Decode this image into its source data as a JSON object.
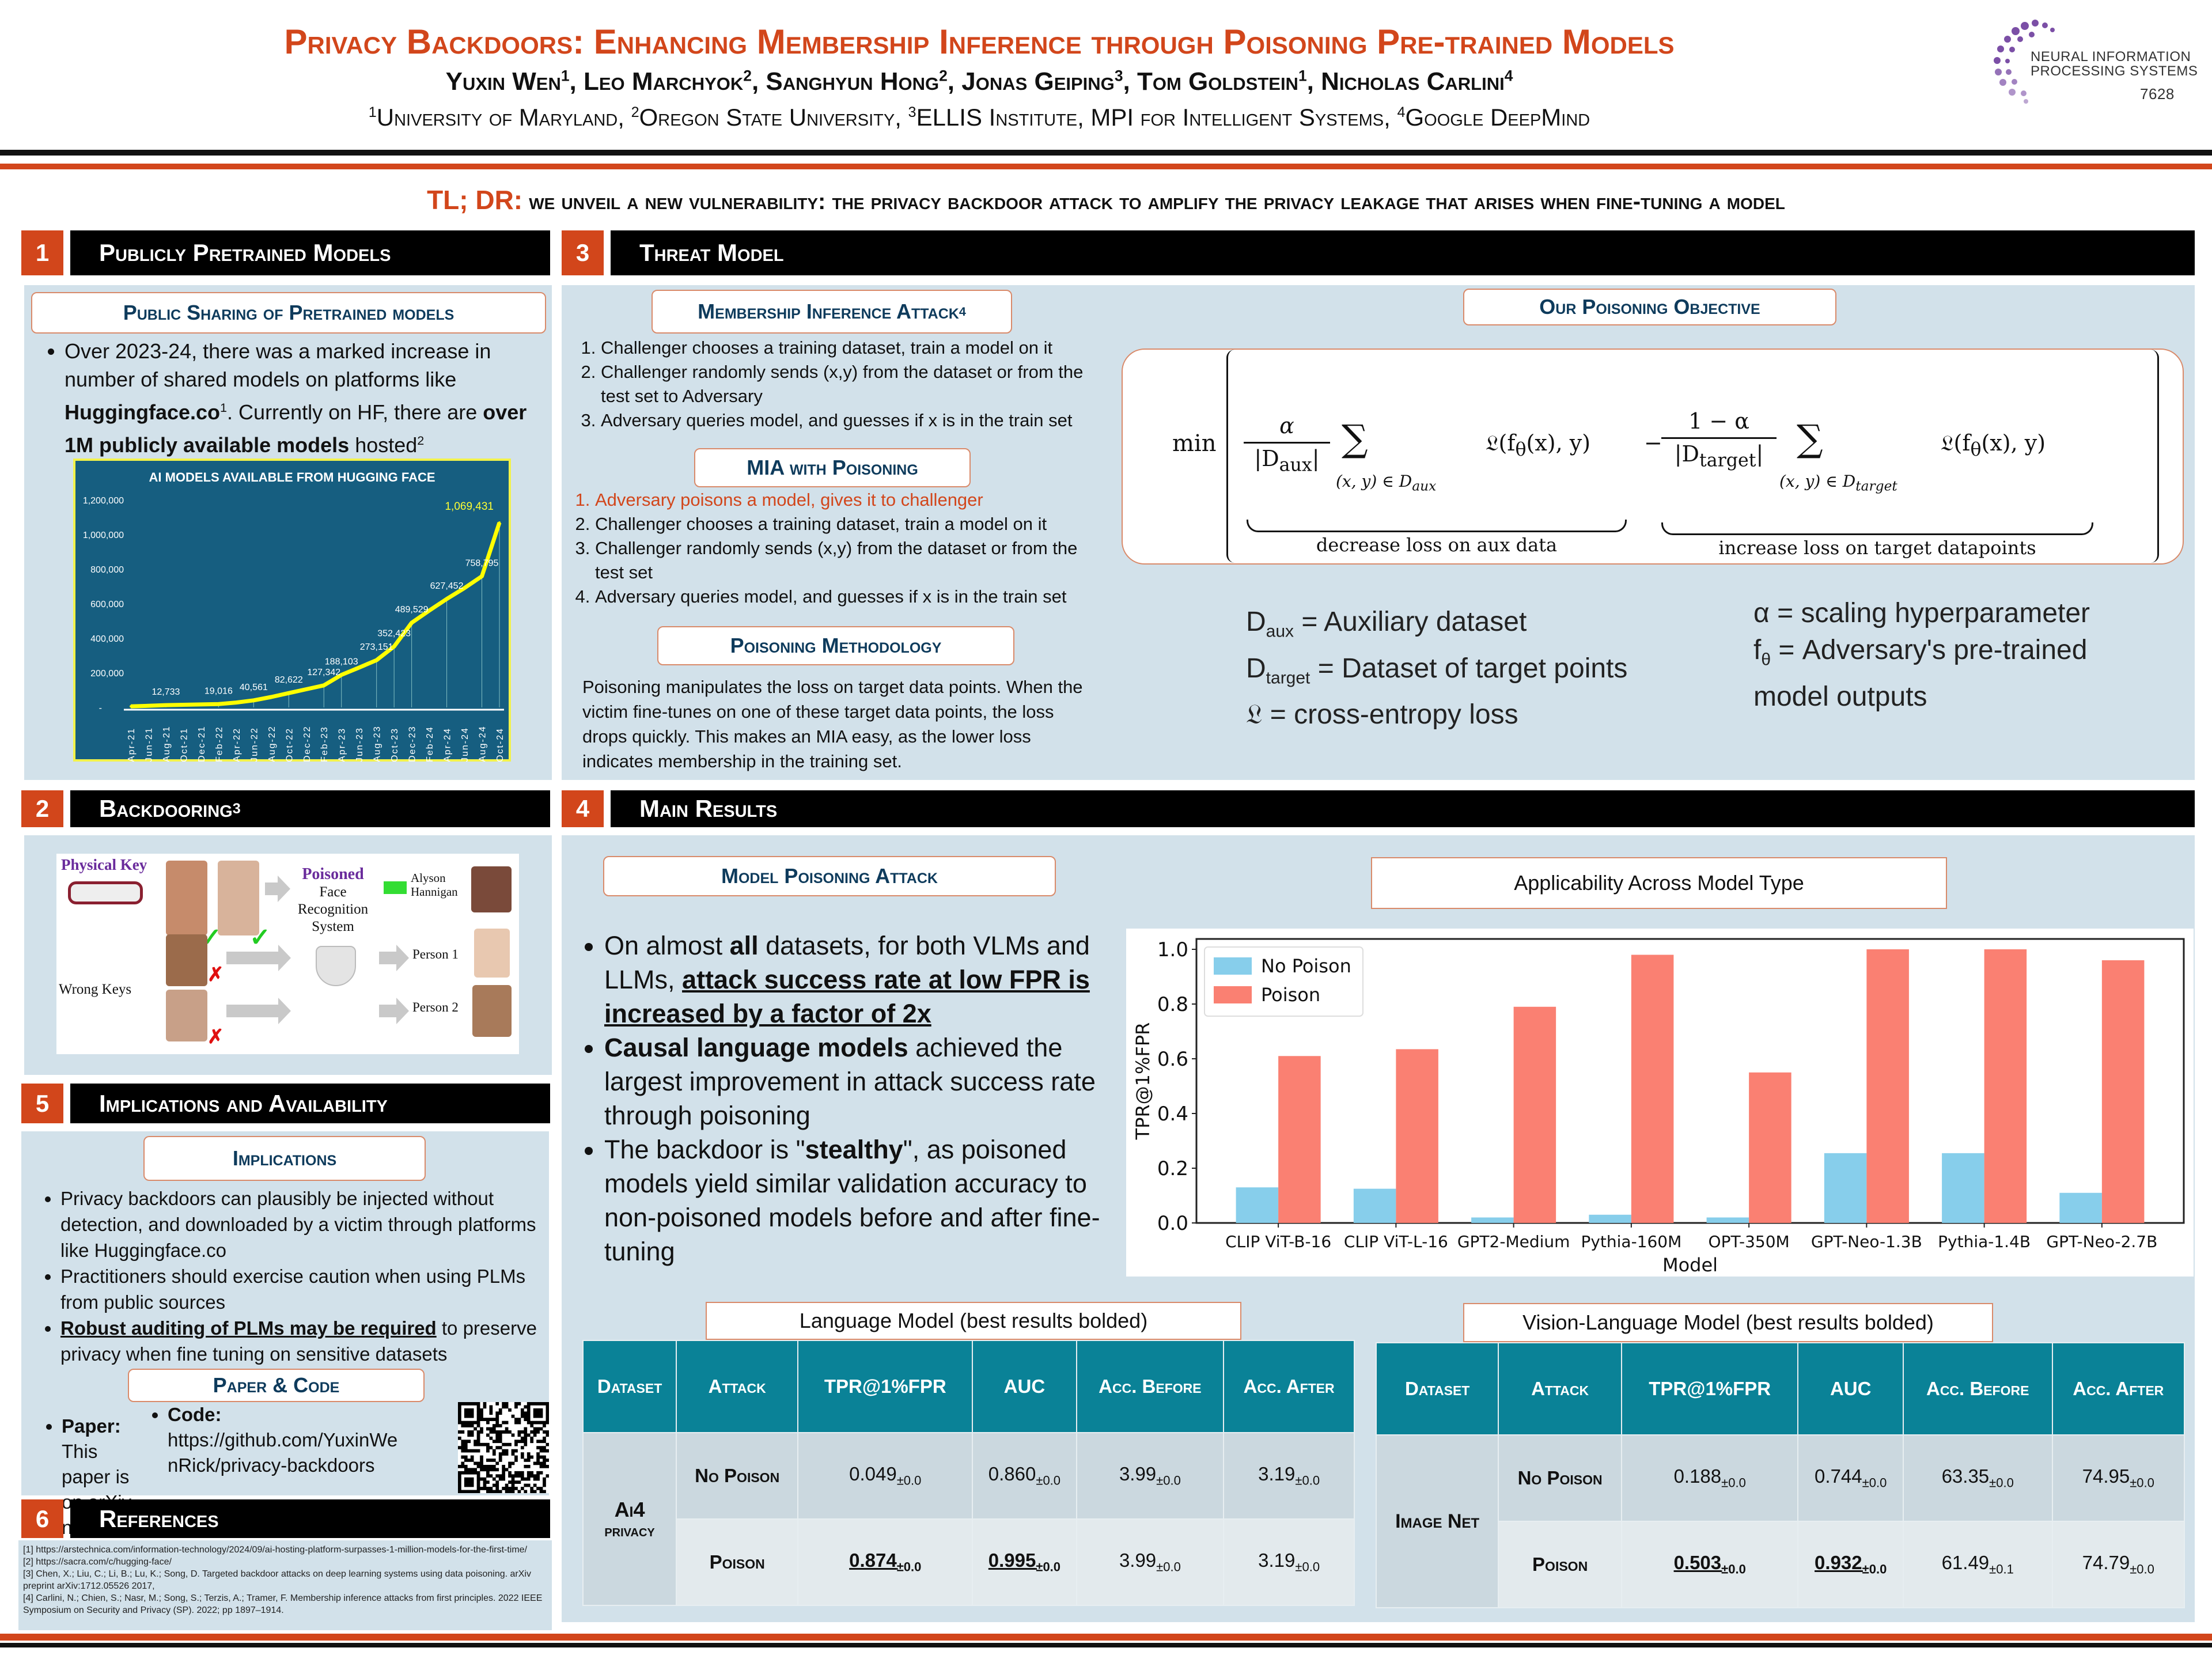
{
  "header": {
    "title": "Privacy Backdoors: Enhancing Membership Inference through Poisoning Pre-trained Models",
    "authors": [
      {
        "name": "Yuxin Wen",
        "sup": "1"
      },
      {
        "name": "Leo Marchyok",
        "sup": "2"
      },
      {
        "name": "Sanghyun Hong",
        "sup": "2"
      },
      {
        "name": "Jonas Geiping",
        "sup": "3"
      },
      {
        "name": "Tom Goldstein",
        "sup": "1"
      },
      {
        "name": "Nicholas Carlini",
        "sup": "4"
      }
    ],
    "affiliations": [
      {
        "sup": "1",
        "name": "University of Maryland"
      },
      {
        "sup": "2",
        "name": "Oregon State University"
      },
      {
        "sup": "3",
        "name": "ELLIS Institute, MPI for Intelligent Systems"
      },
      {
        "sup": "4",
        "name": "Google DeepMind"
      }
    ],
    "logo": {
      "line1": "NEURAL INFORMATION",
      "line2": "PROCESSING SYSTEMS",
      "number": "7628",
      "color": "#7b4fa6"
    }
  },
  "tldr": {
    "label": "TL; DR:",
    "text": "we unveil a new vulnerability: the privacy backdoor attack to amplify the privacy leakage that arises when fine-tuning a model"
  },
  "s1": {
    "num": "1",
    "title": "Publicly Pretrained Models",
    "subtitle": "Public Sharing of Pretrained models",
    "p": [
      "Over 2023-24, there was a marked increase in number of shared models on platforms like ",
      "Huggingface.co",
      "1",
      ". Currently on HF, there are ",
      "over 1M publicly available models",
      " hosted",
      "2"
    ]
  },
  "s2": {
    "num": "2",
    "title": "Backdooring",
    "title_sup": "3",
    "figure": {
      "physical_key": "Physical Key",
      "poisoned": "Poisoned",
      "system": [
        "Face",
        "Recognition",
        "System"
      ],
      "wrong_keys": "Wrong Keys",
      "out1": [
        "Alyson",
        "Hannigan"
      ],
      "out2": "Person 1",
      "out3": "Person 2"
    }
  },
  "s3": {
    "num": "3",
    "title": "Threat Model",
    "mia_title": "Membership Inference Attack",
    "mia_sup": "4",
    "mia_steps": [
      "Challenger chooses a training dataset, train a model on it",
      "Challenger randomly sends (x,y) from the dataset or from the test set to Adversary",
      "Adversary queries model, and guesses if x is in the train set"
    ],
    "miap_title": "MIA with Poisoning",
    "miap_steps": [
      "Adversary poisons a model, gives it to challenger",
      "Challenger chooses a training dataset, train a model on it",
      "Challenger randomly sends (x,y) from the dataset or from the test set",
      "Adversary queries model, and guesses if x is in the train set"
    ],
    "method_title": "Poisoning Methodology",
    "method_text": "Poisoning manipulates the loss on target data points. When the victim fine-tunes on one of these target data points, the loss drops quickly. This makes an MIA easy, as the lower loss indicates membership in the training set.",
    "objective_title": "Our Poisoning Objective",
    "formula": {
      "min": "min",
      "alpha": "α",
      "one_minus_alpha": "1 − α",
      "daux": "|D",
      "aux": "aux",
      "target": "target",
      "sum": "∑",
      "idx": "(x, y) ∈ D",
      "loss": "𝔏(f",
      "theta": "θ",
      "loss_rest": "(x), y)",
      "minus": "−",
      "brace1": "decrease loss on aux data",
      "brace2": "increase loss on target datapoints"
    },
    "defs": {
      "daux": [
        "D",
        "aux",
        " = Auxiliary dataset"
      ],
      "dtarget": [
        "D",
        "target",
        " = Dataset of target points"
      ],
      "loss": "𝔏 = cross-entropy loss",
      "alpha": "α = scaling hyperparameter",
      "f": [
        "f",
        "θ",
        " = Adversary's pre-trained model outputs"
      ]
    }
  },
  "s4": {
    "num": "4",
    "title": "Main Results",
    "attack_title": "Model Poisoning Attack",
    "b1": [
      "On almost ",
      "all",
      " datasets, for both VLMs and LLMs, ",
      "attack success rate at low FPR is increased by a factor of 2x"
    ],
    "b2": [
      "Causal language models",
      " achieved  the largest improvement in attack success rate through poisoning"
    ],
    "b3": [
      "The backdoor is \"",
      "stealthy",
      "\", as poisoned models yield similar validation accuracy to non-poisoned models before and after fine-tuning"
    ],
    "chart_title": "Applicability Across Model Type",
    "lm_title": "Language Model (best results bolded)",
    "vlm_title": "Vision-Language Model (best results bolded)",
    "columns": [
      "Dataset",
      "Attack",
      "TPR@1%FPR",
      "AUC",
      "Acc. Before",
      "Acc. After"
    ],
    "lm_table": {
      "dataset": [
        "Ai4",
        "privacy"
      ],
      "rows": [
        {
          "attack": "No Poison",
          "cells": [
            [
              "0.049",
              "±0.0"
            ],
            [
              "0.860",
              "±0.0"
            ],
            [
              "3.99",
              "±0.0"
            ],
            [
              "3.19",
              "±0.0"
            ]
          ]
        },
        {
          "attack": "Poison",
          "cells": [
            [
              "0.874",
              "±0.0"
            ],
            [
              "0.995",
              "±0.0"
            ],
            [
              "3.99",
              "±0.0"
            ],
            [
              "3.19",
              "±0.0"
            ]
          ]
        }
      ]
    },
    "vlm_table": {
      "dataset": "Image Net",
      "rows": [
        {
          "attack": "No Poison",
          "cells": [
            [
              "0.188",
              "±0.0"
            ],
            [
              "0.744",
              "±0.0"
            ],
            [
              "63.35",
              "±0.0"
            ],
            [
              "74.95",
              "±0.0"
            ]
          ]
        },
        {
          "attack": "Poison",
          "cells": [
            [
              "0.503",
              "±0.0"
            ],
            [
              "0.932",
              "±0.0"
            ],
            [
              "61.49",
              "±0.1"
            ],
            [
              "74.79",
              "±0.0"
            ]
          ]
        }
      ]
    }
  },
  "s5": {
    "num": "5",
    "title": "Implications and Availability",
    "impl_title": "Implications",
    "b1": "Privacy backdoors can plausibly be injected without detection, and downloaded by a victim through platforms like Huggingface.co",
    "b2": "Practitioners should exercise caution when using PLMs from public sources",
    "b3": [
      "Robust auditing of PLMs may be required",
      " to preserve privacy when fine tuning on sensitive datasets"
    ],
    "pc_title": "Paper & Code",
    "paper": [
      "Paper:",
      " This paper is on arXiv now!"
    ],
    "code": [
      "Code:",
      "https://github.com/YuxinWenRick/privacy-backdoors"
    ]
  },
  "s6": {
    "num": "6",
    "title": "References",
    "refs": [
      "[1]  https://arstechnica.com/information-technology/2024/09/ai-hosting-platform-surpasses-1-million-models-for-the-first-time/",
      "[2]  https://sacra.com/c/hugging-face/",
      "[3]  Chen, X.; Liu, C.; Li, B.; Lu, K.; Song, D. Targeted backdoor attacks on deep learning systems using data poisoning. arXiv preprint arXiv:1712.05526 2017,",
      "[4]  Carlini, N.; Chien, S.; Nasr, M.; Song, S.; Terzis, A.; Tramer, F. Membership inference attacks from first principles. 2022 IEEE Symposium on Security and Privacy (SP). 2022; pp 1897–1914."
    ]
  },
  "chart_data": [
    {
      "type": "line",
      "title": "AI MODELS AVAILABLE FROM HUGGING FACE",
      "categories": [
        "Apr-21",
        "Jun-21",
        "Aug-21",
        "Oct-21",
        "Dec-21",
        "Feb-22",
        "Apr-22",
        "Jun-22",
        "Aug-22",
        "Oct-22",
        "Dec-22",
        "Feb-23",
        "Apr-23",
        "Jun-23",
        "Aug-23",
        "Oct-23",
        "Dec-23",
        "Feb-24",
        "Apr-24",
        "Jun-24",
        "Aug-24",
        "Oct-24"
      ],
      "values": [
        6000,
        9000,
        12733,
        15000,
        17000,
        19016,
        28000,
        40561,
        60000,
        82622,
        105000,
        127342,
        188103,
        230000,
        273151,
        352423,
        489529,
        560000,
        627452,
        690000,
        758795,
        1069431
      ],
      "data_labels": [
        null,
        null,
        "12,733",
        null,
        null,
        "19,016",
        null,
        "40,561",
        null,
        "82,622",
        null,
        "127,342",
        "188,103",
        null,
        "273,151",
        "352,423",
        "489,529",
        null,
        "627,452",
        null,
        "758,795",
        "1,069,431"
      ],
      "yticks": [
        "-",
        "200,000",
        "400,000",
        "600,000",
        "800,000",
        "1,000,000",
        "1,200,000"
      ],
      "ylim": [
        0,
        1200000
      ],
      "colors": {
        "bg": "#165e80",
        "line": "#ffff00",
        "border": "#f2f24a"
      }
    },
    {
      "type": "bar",
      "title": "Applicability Across Model Type",
      "xlabel": "Model",
      "ylabel": "TPR@1%FPR",
      "categories": [
        "CLIP ViT-B-16",
        "CLIP ViT-L-16",
        "GPT2-Medium",
        "Pythia-160M",
        "OPT-350M",
        "GPT-Neo-1.3B",
        "Pythia-1.4B",
        "GPT-Neo-2.7B"
      ],
      "series": [
        {
          "name": "No Poison",
          "color": "#87ceeb",
          "values": [
            0.13,
            0.125,
            0.02,
            0.03,
            0.02,
            0.255,
            0.255,
            0.11
          ]
        },
        {
          "name": "Poison",
          "color": "#fa8072",
          "values": [
            0.61,
            0.635,
            0.79,
            0.98,
            0.55,
            1.0,
            1.0,
            0.96
          ]
        }
      ],
      "yticks": [
        "0.0",
        "0.2",
        "0.4",
        "0.6",
        "0.8",
        "1.0"
      ],
      "ylim": [
        0,
        1.05
      ],
      "legend": "top-left"
    }
  ]
}
